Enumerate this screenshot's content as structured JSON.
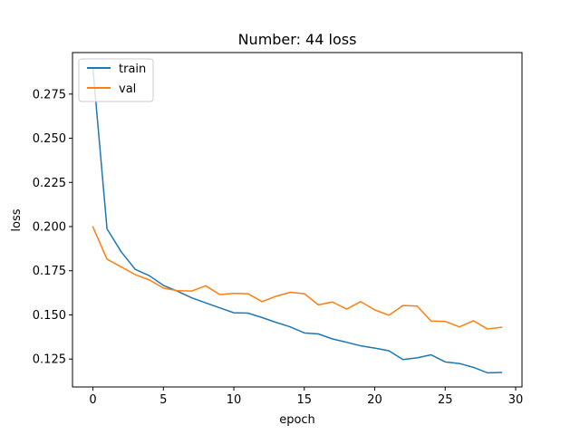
{
  "chart_data": {
    "type": "line",
    "title": "Number: 44 loss",
    "xlabel": "epoch",
    "ylabel": "loss",
    "xlim": [
      -1.45,
      30.45
    ],
    "ylim": [
      0.1092,
      0.2985
    ],
    "xticks": [
      0,
      5,
      10,
      15,
      20,
      25,
      30
    ],
    "yticks": [
      0.125,
      0.15,
      0.175,
      0.2,
      0.225,
      0.25,
      0.275
    ],
    "ytick_labels": [
      "0.125",
      "0.150",
      "0.175",
      "0.200",
      "0.225",
      "0.250",
      "0.275"
    ],
    "grid": false,
    "legend_position": "upper-left",
    "x": [
      0,
      1,
      2,
      3,
      4,
      5,
      6,
      7,
      8,
      9,
      10,
      11,
      12,
      12.9,
      14,
      15,
      16,
      17,
      18,
      19,
      20,
      21,
      22,
      23,
      24,
      25,
      26,
      27,
      28,
      29
    ],
    "series": [
      {
        "name": "train",
        "color": "#1f77b4",
        "values": [
          0.2895,
          0.1987,
          0.1858,
          0.1758,
          0.1722,
          0.1667,
          0.1634,
          0.1597,
          0.1568,
          0.154,
          0.1512,
          0.151,
          0.1485,
          0.146,
          0.1432,
          0.1398,
          0.1392,
          0.1364,
          0.1345,
          0.1325,
          0.1312,
          0.1297,
          0.1247,
          0.1257,
          0.1274,
          0.1234,
          0.1225,
          0.1203,
          0.1172,
          0.1174
        ]
      },
      {
        "name": "val",
        "color": "#ff7f0e",
        "values": [
          0.1998,
          0.1815,
          0.1772,
          0.1728,
          0.1698,
          0.1652,
          0.1637,
          0.1635,
          0.1665,
          0.1615,
          0.1622,
          0.162,
          0.1575,
          0.1603,
          0.1628,
          0.162,
          0.1557,
          0.1573,
          0.1533,
          0.1575,
          0.1528,
          0.1498,
          0.1553,
          0.155,
          0.1465,
          0.1463,
          0.1432,
          0.1467,
          0.142,
          0.143
        ]
      }
    ]
  }
}
